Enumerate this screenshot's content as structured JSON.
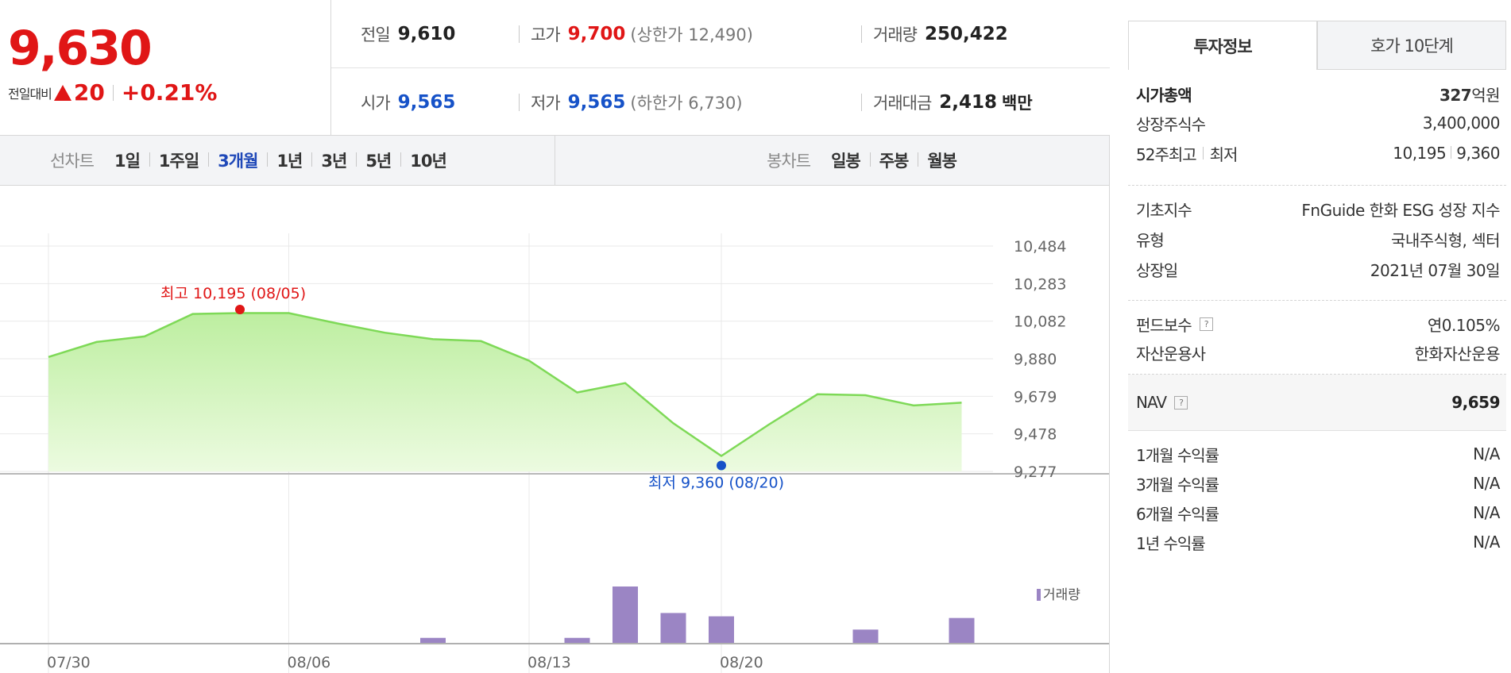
{
  "quote": {
    "price": "9,630",
    "change_label": "전일대비",
    "change_value": "20",
    "change_pct": "+0.21%",
    "stats": {
      "prev_label": "전일",
      "prev": "9,610",
      "high_label": "고가",
      "high": "9,700",
      "upper_limit": "(상한가 12,490)",
      "volume_label": "거래량",
      "volume": "250,422",
      "open_label": "시가",
      "open": "9,565",
      "low_label": "저가",
      "low": "9,565",
      "lower_limit": "(하한가 6,730)",
      "amount_label": "거래대금",
      "amount": "2,418",
      "amount_unit": "백만"
    }
  },
  "tabs": {
    "line_label": "선차트",
    "line_periods": [
      "1일",
      "1주일",
      "3개월",
      "1년",
      "3년",
      "5년",
      "10년"
    ],
    "active_period": "3개월",
    "candle_label": "봉차트",
    "candle_periods": [
      "일봉",
      "주봉",
      "월봉"
    ]
  },
  "chart_data": {
    "type": "area",
    "x_ticks": [
      "07/30",
      "08/06",
      "08/13",
      "08/20"
    ],
    "y_ticks": [
      "10,484",
      "10,283",
      "10,082",
      "9,880",
      "9,679",
      "9,478",
      "9,277"
    ],
    "ylim": [
      9277,
      10484
    ],
    "dates": [
      "07/30",
      "08/02",
      "08/03",
      "08/04",
      "08/05",
      "08/06",
      "08/09",
      "08/10",
      "08/11",
      "08/12",
      "08/13",
      "08/17",
      "08/18",
      "08/19",
      "08/20",
      "08/23",
      "08/24",
      "08/25",
      "08/26",
      "08/27"
    ],
    "price_values": [
      9890,
      9970,
      10000,
      10120,
      10125,
      10125,
      10070,
      10020,
      9985,
      9975,
      9870,
      9700,
      9750,
      9535,
      9360,
      9530,
      9690,
      9685,
      9630,
      9645
    ],
    "high_annotation": "최고 10,195 (08/05)",
    "high_value": 10195,
    "high_index": 4,
    "low_annotation": "최저 9,360 (08/20)",
    "low_value": 9360,
    "low_index": 14,
    "volume_label": "거래량",
    "volume_values": [
      0,
      0,
      0,
      0,
      0,
      0,
      0,
      0,
      6,
      0,
      0,
      6,
      68,
      36,
      32,
      0,
      0,
      16,
      0,
      30
    ],
    "volume_max": 68
  },
  "info": {
    "tab_invest": "투자정보",
    "tab_quote10": "호가 10단계",
    "market_cap_label": "시가총액",
    "market_cap_num": "327",
    "market_cap_unit": "억원",
    "shares_label": "상장주식수",
    "shares": "3,400,000",
    "w52_label_a": "52주최고",
    "w52_label_b": "최저",
    "w52_high": "10,195",
    "w52_low": "9,360",
    "index_label": "기초지수",
    "index": "FnGuide 한화 ESG 성장 지수",
    "type_label": "유형",
    "type": "국내주식형, 섹터",
    "listed_label": "상장일",
    "listed": "2021년 07월 30일",
    "fee_label": "펀드보수",
    "fee": "연0.105%",
    "manager_label": "자산운용사",
    "manager": "한화자산운용",
    "nav_label": "NAV",
    "nav": "9,659",
    "ret1m_label": "1개월 수익률",
    "ret1m": "N/A",
    "ret3m_label": "3개월 수익률",
    "ret3m": "N/A",
    "ret6m_label": "6개월 수익률",
    "ret6m": "N/A",
    "ret1y_label": "1년 수익률",
    "ret1y": "N/A",
    "help_glyph": "?"
  },
  "colors": {
    "up": "#e01616",
    "down": "#1652c8",
    "line": "#7ed957",
    "area": "#c9f1ab",
    "volume": "#9b85c4"
  }
}
